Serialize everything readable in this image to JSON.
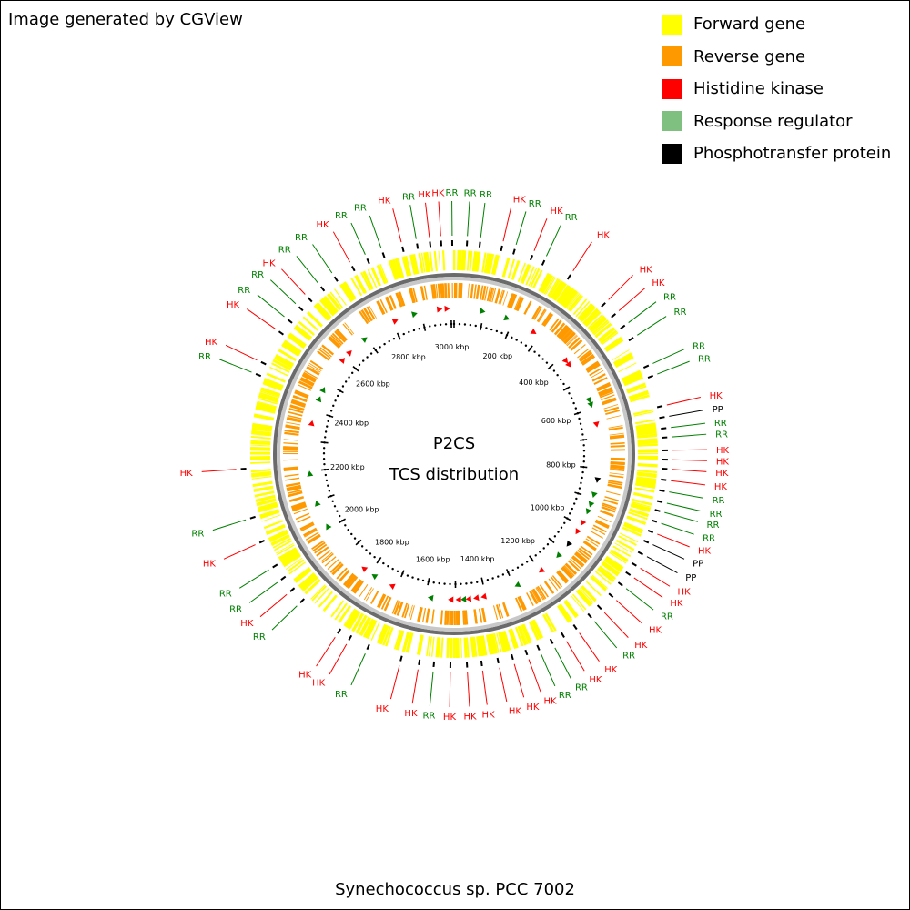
{
  "credit": "Image generated by CGView",
  "caption": "Synechococcus sp. PCC 7002",
  "center": {
    "title": "P2CS",
    "subtitle": "TCS distribution"
  },
  "legend": [
    {
      "label": "Forward gene",
      "color": "#ffff00"
    },
    {
      "label": "Reverse gene",
      "color": "#ff9900"
    },
    {
      "label": "Histidine kinase",
      "color": "#ff0000"
    },
    {
      "label": "Response regulator",
      "color": "#7fbf7f"
    },
    {
      "label": "Phosphotransfer protein",
      "color": "#000000"
    }
  ],
  "colors": {
    "HK": "#ff0000",
    "RR": "#008000",
    "PP": "#000000"
  },
  "tick_labels": [
    "200 kbp",
    "400 kbp",
    "600 kbp",
    "800 kbp",
    "1000 kbp",
    "1200 kbp",
    "1400 kbp",
    "1600 kbp",
    "1800 kbp",
    "2000 kbp",
    "2200 kbp",
    "2400 kbp",
    "2600 kbp",
    "2800 kbp",
    "3000 kbp"
  ],
  "genome_length_kbp": 3010,
  "callouts": [
    {
      "type": "HK",
      "deg": -6.5
    },
    {
      "type": "HK",
      "deg": -3.5
    },
    {
      "type": "RR",
      "deg": -0.5
    },
    {
      "type": "RR",
      "deg": 3.5
    },
    {
      "type": "RR",
      "deg": 7
    },
    {
      "type": "HK",
      "deg": 13
    },
    {
      "type": "RR",
      "deg": 16.5
    },
    {
      "type": "HK",
      "deg": 21.5
    },
    {
      "type": "RR",
      "deg": 25
    },
    {
      "type": "HK",
      "deg": 33
    },
    {
      "type": "HK",
      "deg": 45
    },
    {
      "type": "HK",
      "deg": 49
    },
    {
      "type": "RR",
      "deg": 53
    },
    {
      "type": "RR",
      "deg": 57
    },
    {
      "type": "RR",
      "deg": 65.5
    },
    {
      "type": "RR",
      "deg": 68.5
    },
    {
      "type": "HK",
      "deg": 77
    },
    {
      "type": "PP",
      "deg": 80
    },
    {
      "type": "RR",
      "deg": 83
    },
    {
      "type": "RR",
      "deg": 85.5
    },
    {
      "type": "HK",
      "deg": 89
    },
    {
      "type": "HK",
      "deg": 91.5
    },
    {
      "type": "HK",
      "deg": 94
    },
    {
      "type": "HK",
      "deg": 97
    },
    {
      "type": "RR",
      "deg": 100
    },
    {
      "type": "RR",
      "deg": 103
    },
    {
      "type": "RR",
      "deg": 105.5
    },
    {
      "type": "RR",
      "deg": 108.5
    },
    {
      "type": "HK",
      "deg": 111.5
    },
    {
      "type": "PP",
      "deg": 114.5
    },
    {
      "type": "PP",
      "deg": 118
    },
    {
      "type": "HK",
      "deg": 121.5
    },
    {
      "type": "HK",
      "deg": 124.5
    },
    {
      "type": "RR",
      "deg": 128
    },
    {
      "type": "HK",
      "deg": 132
    },
    {
      "type": "HK",
      "deg": 136.5
    },
    {
      "type": "RR",
      "deg": 140
    },
    {
      "type": "HK",
      "deg": 145
    },
    {
      "type": "HK",
      "deg": 149
    },
    {
      "type": "RR",
      "deg": 152.5
    },
    {
      "type": "RR",
      "deg": 156.5
    },
    {
      "type": "HK",
      "deg": 160
    },
    {
      "type": "HK",
      "deg": 164
    },
    {
      "type": "HK",
      "deg": 168
    },
    {
      "type": "HK",
      "deg": 172.5
    },
    {
      "type": "HK",
      "deg": 176.5
    },
    {
      "type": "HK",
      "deg": 181
    },
    {
      "type": "RR",
      "deg": 185.5
    },
    {
      "type": "HK",
      "deg": 189.5
    },
    {
      "type": "HK",
      "deg": 194.5
    },
    {
      "type": "RR",
      "deg": 204
    },
    {
      "type": "HK",
      "deg": 209.5
    },
    {
      "type": "HK",
      "deg": 213
    },
    {
      "type": "RR",
      "deg": 226
    },
    {
      "type": "HK",
      "deg": 230
    },
    {
      "type": "RR",
      "deg": 234
    },
    {
      "type": "RR",
      "deg": 238
    },
    {
      "type": "HK",
      "deg": 245.5
    },
    {
      "type": "RR",
      "deg": 252.5
    },
    {
      "type": "HK",
      "deg": 266
    },
    {
      "type": "RR",
      "deg": 292
    },
    {
      "type": "HK",
      "deg": 295.5
    },
    {
      "type": "HK",
      "deg": 305
    },
    {
      "type": "RR",
      "deg": 309
    },
    {
      "type": "RR",
      "deg": 313.5
    },
    {
      "type": "HK",
      "deg": 317
    },
    {
      "type": "RR",
      "deg": 321.5
    },
    {
      "type": "RR",
      "deg": 326
    },
    {
      "type": "HK",
      "deg": 331.5
    },
    {
      "type": "RR",
      "deg": 336
    },
    {
      "type": "RR",
      "deg": 340.5
    },
    {
      "type": "HK",
      "deg": 346
    },
    {
      "type": "RR",
      "deg": 350
    }
  ],
  "inner_markers": [
    {
      "type": "HK",
      "deg": -6
    },
    {
      "type": "HK",
      "deg": -3
    },
    {
      "type": "RR",
      "deg": 11
    },
    {
      "type": "RR",
      "deg": 21
    },
    {
      "type": "HK",
      "deg": 33
    },
    {
      "type": "HK",
      "deg": 50
    },
    {
      "type": "HK",
      "deg": 52
    },
    {
      "type": "RR",
      "deg": 68
    },
    {
      "type": "RR",
      "deg": 70
    },
    {
      "type": "HK",
      "deg": 78
    },
    {
      "type": "PP",
      "deg": 100
    },
    {
      "type": "RR",
      "deg": 106
    },
    {
      "type": "RR",
      "deg": 110
    },
    {
      "type": "RR",
      "deg": 113
    },
    {
      "type": "HK",
      "deg": 118
    },
    {
      "type": "HK",
      "deg": 122
    },
    {
      "type": "PP",
      "deg": 128
    },
    {
      "type": "RR",
      "deg": 134
    },
    {
      "type": "HK",
      "deg": 143
    },
    {
      "type": "RR",
      "deg": 154
    },
    {
      "type": "HK",
      "deg": 168
    },
    {
      "type": "HK",
      "deg": 171
    },
    {
      "type": "HK",
      "deg": 174
    },
    {
      "type": "RR",
      "deg": 176
    },
    {
      "type": "HK",
      "deg": 178
    },
    {
      "type": "HK",
      "deg": 181
    },
    {
      "type": "RR",
      "deg": 189
    },
    {
      "type": "HK",
      "deg": 205
    },
    {
      "type": "RR",
      "deg": 213
    },
    {
      "type": "HK",
      "deg": 218
    },
    {
      "type": "RR",
      "deg": 240
    },
    {
      "type": "RR",
      "deg": 250
    },
    {
      "type": "RR",
      "deg": 262
    },
    {
      "type": "HK",
      "deg": 282
    },
    {
      "type": "RR",
      "deg": 292
    },
    {
      "type": "RR",
      "deg": 296
    },
    {
      "type": "HK",
      "deg": 310
    },
    {
      "type": "HK",
      "deg": 314
    },
    {
      "type": "RR",
      "deg": 322
    },
    {
      "type": "HK",
      "deg": 336
    },
    {
      "type": "RR",
      "deg": 344
    }
  ]
}
